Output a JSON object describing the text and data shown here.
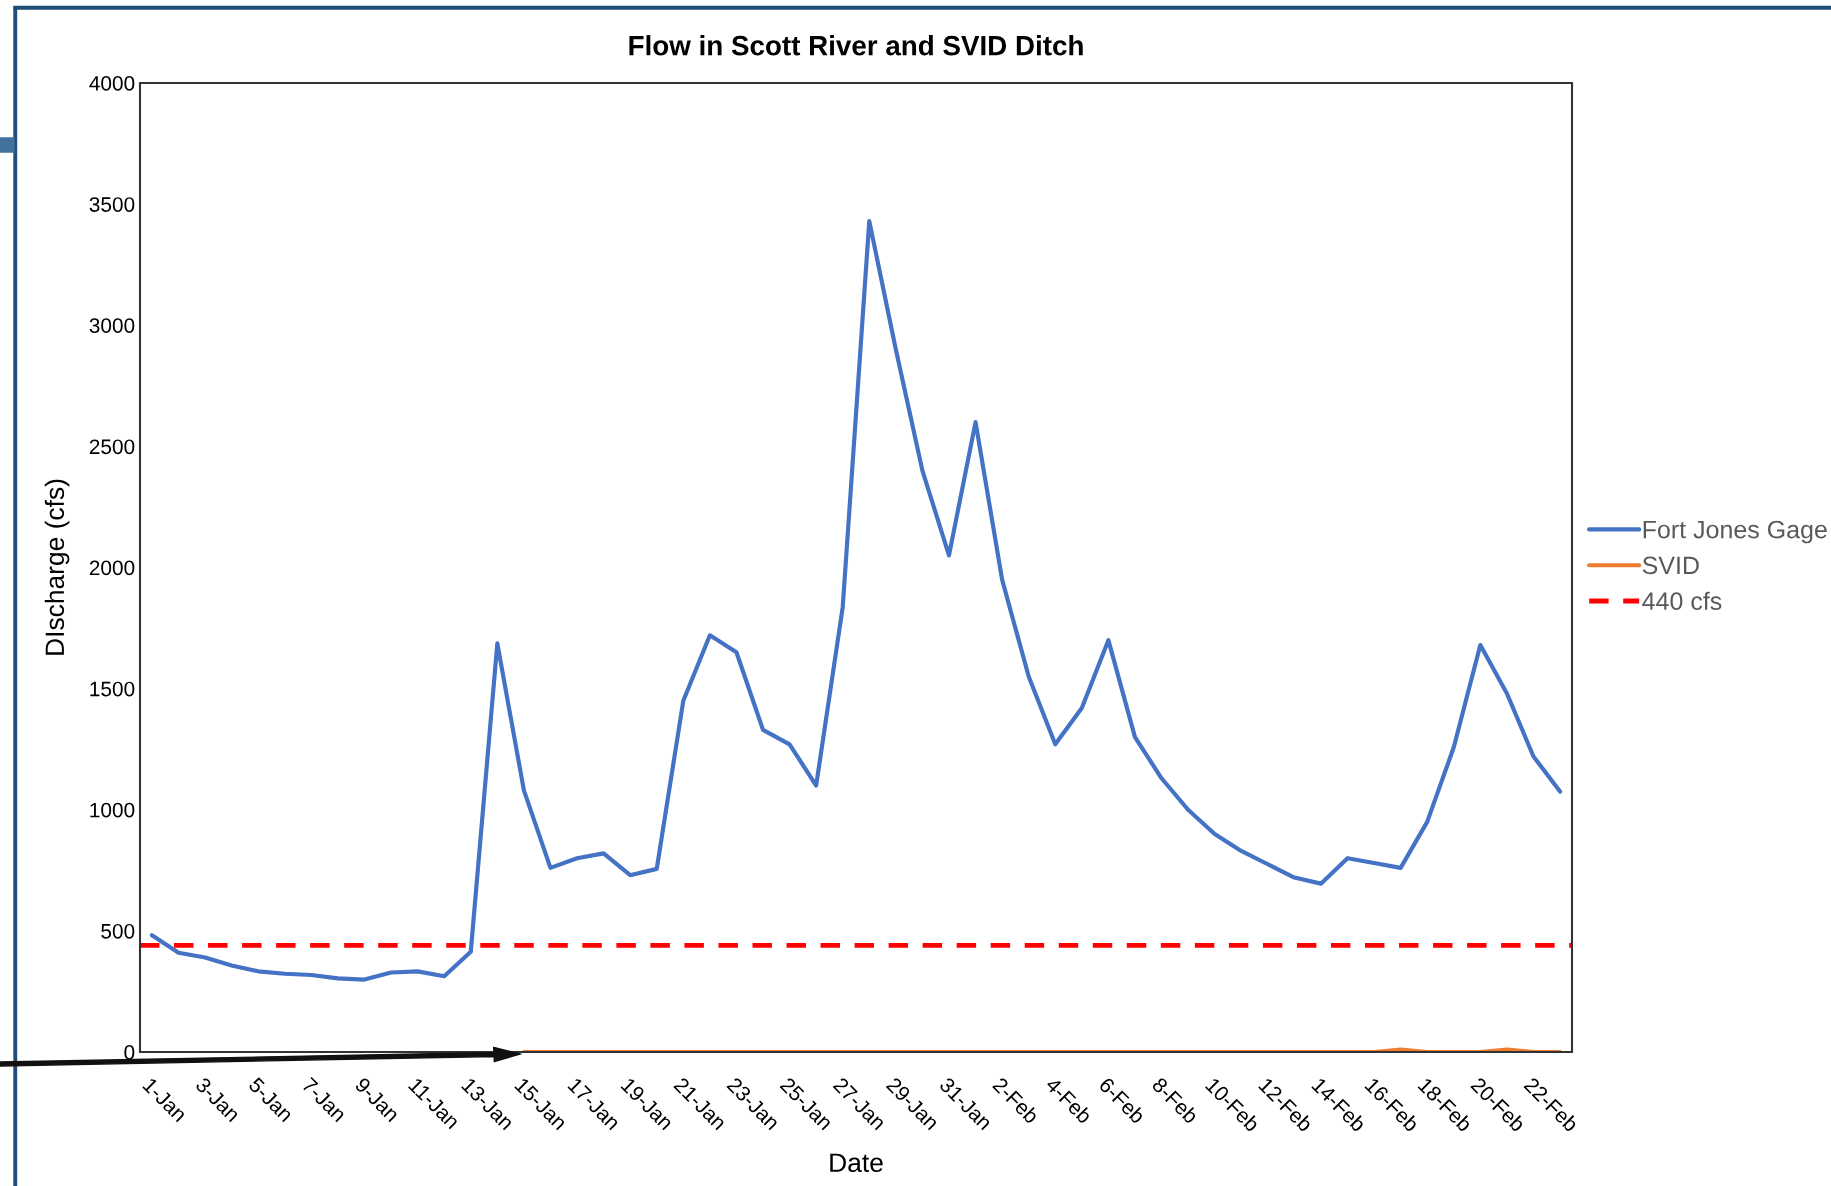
{
  "chart_data": {
    "type": "line",
    "title": "Flow in Scott River and SVID Ditch",
    "xlabel": "Date",
    "ylabel": "DIscharge (cfs)",
    "categories": [
      "1-Jan",
      null,
      "3-Jan",
      null,
      "5-Jan",
      null,
      "7-Jan",
      null,
      "9-Jan",
      null,
      "11-Jan",
      null,
      "13-Jan",
      null,
      "15-Jan",
      null,
      "17-Jan",
      null,
      "19-Jan",
      null,
      "21-Jan",
      null,
      "23-Jan",
      null,
      "25-Jan",
      null,
      "27-Jan",
      null,
      "29-Jan",
      null,
      "31-Jan",
      null,
      "2-Feb",
      null,
      "4-Feb",
      null,
      "6-Feb",
      null,
      "8-Feb",
      null,
      "10-Feb",
      null,
      "12-Feb",
      null,
      "14-Feb",
      null,
      "16-Feb",
      null,
      "18-Feb",
      null,
      "20-Feb",
      null,
      "22-Feb",
      null
    ],
    "series": [
      {
        "name": "Fort Jones Gage",
        "color": "#4472c4",
        "values": [
          482,
          410,
          390,
          357,
          333,
          323,
          318,
          304,
          299,
          328,
          333,
          313,
          414,
          1687,
          1080,
          760,
          800,
          820,
          730,
          756,
          1450,
          1720,
          1650,
          1330,
          1270,
          1100,
          1836,
          3430,
          2900,
          2400,
          2050,
          2600,
          1950,
          1550,
          1270,
          1420,
          1700,
          1300,
          1130,
          1000,
          900,
          830,
          775,
          720,
          695,
          800,
          780,
          760,
          950,
          1258,
          1680,
          1480,
          1220,
          1075
        ]
      },
      {
        "name": "SVID",
        "color": "#ed7d31",
        "values": [
          null,
          null,
          null,
          null,
          null,
          null,
          null,
          null,
          null,
          null,
          null,
          null,
          null,
          null,
          0,
          0,
          0,
          0,
          0,
          0,
          0,
          0,
          0,
          0,
          0,
          0,
          0,
          0,
          0,
          0,
          0,
          0,
          0,
          0,
          0,
          0,
          0,
          0,
          0,
          0,
          0,
          0,
          0,
          0,
          0,
          0,
          0,
          10,
          0,
          0,
          0,
          10,
          0,
          0
        ]
      }
    ],
    "ref_lines": [
      {
        "axis": "y",
        "value": 440,
        "label": "440 cfs",
        "color": "#ff0000",
        "line_style": "dashed"
      }
    ],
    "ylim": [
      0,
      4000
    ],
    "yticks": [
      0,
      500,
      1000,
      1500,
      2000,
      2500,
      3000,
      3500,
      4000
    ],
    "grid": false,
    "legend": "right",
    "marker": "none",
    "line_style": "solid"
  }
}
